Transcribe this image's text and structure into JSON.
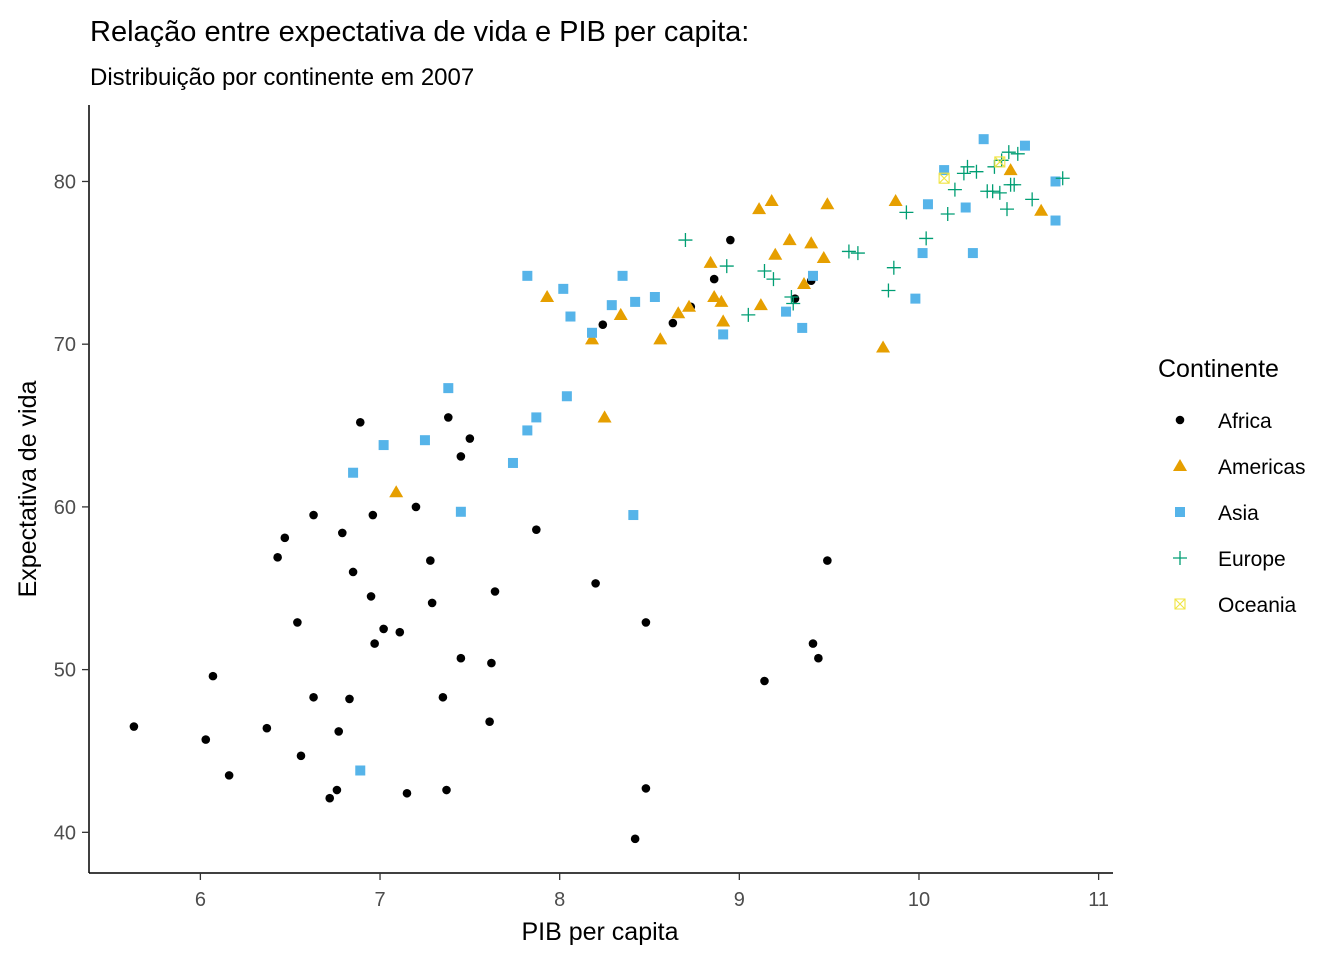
{
  "chart_data": {
    "type": "scatter",
    "title": "Relação entre expectativa de vida e PIB per capita:",
    "subtitle": "Distribuição por continente em 2007",
    "xlabel": "PIB per capita",
    "ylabel": "Expectativa de vida",
    "xlim": [
      5.38,
      11.08
    ],
    "ylim": [
      37.5,
      84.7
    ],
    "xticks": [
      6,
      7,
      8,
      9,
      10,
      11
    ],
    "yticks": [
      40,
      50,
      60,
      70,
      80
    ],
    "grid": false,
    "legend": {
      "title": "Continente",
      "position": "right"
    },
    "series": [
      {
        "name": "Africa",
        "color": "#000000",
        "marker": "circle",
        "points": [
          [
            5.63,
            46.5
          ],
          [
            6.03,
            45.7
          ],
          [
            6.07,
            49.6
          ],
          [
            6.16,
            43.5
          ],
          [
            6.37,
            46.4
          ],
          [
            6.43,
            56.9
          ],
          [
            6.47,
            58.1
          ],
          [
            6.54,
            52.9
          ],
          [
            6.56,
            44.7
          ],
          [
            6.63,
            59.5
          ],
          [
            6.63,
            48.3
          ],
          [
            6.72,
            42.1
          ],
          [
            6.76,
            42.6
          ],
          [
            6.77,
            46.2
          ],
          [
            6.79,
            58.4
          ],
          [
            6.83,
            48.2
          ],
          [
            6.85,
            56.0
          ],
          [
            6.89,
            65.2
          ],
          [
            6.95,
            54.5
          ],
          [
            6.96,
            59.5
          ],
          [
            6.97,
            51.6
          ],
          [
            7.02,
            52.5
          ],
          [
            7.11,
            52.3
          ],
          [
            7.15,
            42.4
          ],
          [
            7.2,
            60.0
          ],
          [
            7.28,
            56.7
          ],
          [
            7.29,
            54.1
          ],
          [
            7.35,
            48.3
          ],
          [
            7.37,
            42.6
          ],
          [
            7.38,
            65.5
          ],
          [
            7.45,
            63.1
          ],
          [
            7.45,
            50.7
          ],
          [
            7.5,
            64.2
          ],
          [
            7.61,
            46.8
          ],
          [
            7.62,
            50.4
          ],
          [
            7.64,
            54.8
          ],
          [
            7.87,
            58.6
          ],
          [
            8.2,
            55.3
          ],
          [
            8.42,
            39.6
          ],
          [
            8.48,
            52.9
          ],
          [
            8.48,
            42.7
          ],
          [
            8.63,
            71.3
          ],
          [
            8.73,
            72.3
          ],
          [
            8.86,
            74.0
          ],
          [
            8.95,
            76.4
          ],
          [
            9.14,
            49.3
          ],
          [
            9.31,
            72.8
          ],
          [
            9.41,
            51.6
          ],
          [
            9.44,
            50.7
          ],
          [
            9.4,
            73.9
          ],
          [
            9.49,
            56.7
          ],
          [
            8.24,
            71.2
          ]
        ]
      },
      {
        "name": "Americas",
        "color": "#e69f00",
        "marker": "triangle",
        "points": [
          [
            7.09,
            60.9
          ],
          [
            7.93,
            72.9
          ],
          [
            8.18,
            70.3
          ],
          [
            8.25,
            65.5
          ],
          [
            8.34,
            71.8
          ],
          [
            8.56,
            70.3
          ],
          [
            8.66,
            71.9
          ],
          [
            8.72,
            72.3
          ],
          [
            8.84,
            75.0
          ],
          [
            8.86,
            72.9
          ],
          [
            8.9,
            72.6
          ],
          [
            8.91,
            71.4
          ],
          [
            9.11,
            78.3
          ],
          [
            9.12,
            72.4
          ],
          [
            9.18,
            78.8
          ],
          [
            9.2,
            75.5
          ],
          [
            9.28,
            76.4
          ],
          [
            9.36,
            73.7
          ],
          [
            9.4,
            76.2
          ],
          [
            9.47,
            75.3
          ],
          [
            9.49,
            78.6
          ],
          [
            9.8,
            69.8
          ],
          [
            9.87,
            78.8
          ],
          [
            10.51,
            80.7
          ],
          [
            10.68,
            78.2
          ]
        ]
      },
      {
        "name": "Asia",
        "color": "#56b4e9",
        "marker": "square",
        "points": [
          [
            6.85,
            62.1
          ],
          [
            6.89,
            43.8
          ],
          [
            7.02,
            63.8
          ],
          [
            7.25,
            64.1
          ],
          [
            7.38,
            67.3
          ],
          [
            7.45,
            59.7
          ],
          [
            7.74,
            62.7
          ],
          [
            7.82,
            64.7
          ],
          [
            7.82,
            74.2
          ],
          [
            7.87,
            65.5
          ],
          [
            8.02,
            73.4
          ],
          [
            8.04,
            66.8
          ],
          [
            8.06,
            71.7
          ],
          [
            8.18,
            70.7
          ],
          [
            8.29,
            72.4
          ],
          [
            8.35,
            74.2
          ],
          [
            8.41,
            59.5
          ],
          [
            8.42,
            72.6
          ],
          [
            8.53,
            72.9
          ],
          [
            8.91,
            70.6
          ],
          [
            9.26,
            72.0
          ],
          [
            9.35,
            71.0
          ],
          [
            9.41,
            74.2
          ],
          [
            9.98,
            72.8
          ],
          [
            10.02,
            75.6
          ],
          [
            10.05,
            78.6
          ],
          [
            10.14,
            80.7
          ],
          [
            10.26,
            78.4
          ],
          [
            10.3,
            75.6
          ],
          [
            10.36,
            82.6
          ],
          [
            10.59,
            82.2
          ],
          [
            10.76,
            80.0
          ],
          [
            10.76,
            77.6
          ]
        ]
      },
      {
        "name": "Europe",
        "color": "#009e73",
        "marker": "plus",
        "points": [
          [
            8.7,
            76.4
          ],
          [
            8.93,
            74.8
          ],
          [
            9.05,
            71.8
          ],
          [
            9.14,
            74.5
          ],
          [
            9.19,
            74.0
          ],
          [
            9.29,
            72.9
          ],
          [
            9.3,
            72.5
          ],
          [
            9.61,
            75.7
          ],
          [
            9.66,
            75.6
          ],
          [
            9.83,
            73.3
          ],
          [
            9.86,
            74.7
          ],
          [
            9.93,
            78.1
          ],
          [
            10.04,
            76.5
          ],
          [
            10.16,
            78.0
          ],
          [
            10.2,
            79.5
          ],
          [
            10.25,
            80.5
          ],
          [
            10.27,
            80.9
          ],
          [
            10.32,
            80.6
          ],
          [
            10.38,
            79.4
          ],
          [
            10.41,
            79.4
          ],
          [
            10.42,
            80.9
          ],
          [
            10.45,
            79.3
          ],
          [
            10.46,
            81.3
          ],
          [
            10.49,
            78.3
          ],
          [
            10.5,
            81.8
          ],
          [
            10.51,
            79.8
          ],
          [
            10.53,
            79.8
          ],
          [
            10.55,
            81.7
          ],
          [
            10.63,
            78.9
          ],
          [
            10.8,
            80.2
          ]
        ]
      },
      {
        "name": "Oceania",
        "color": "#f0e442",
        "marker": "square-x",
        "points": [
          [
            10.14,
            80.2
          ],
          [
            10.45,
            81.2
          ]
        ]
      }
    ]
  }
}
